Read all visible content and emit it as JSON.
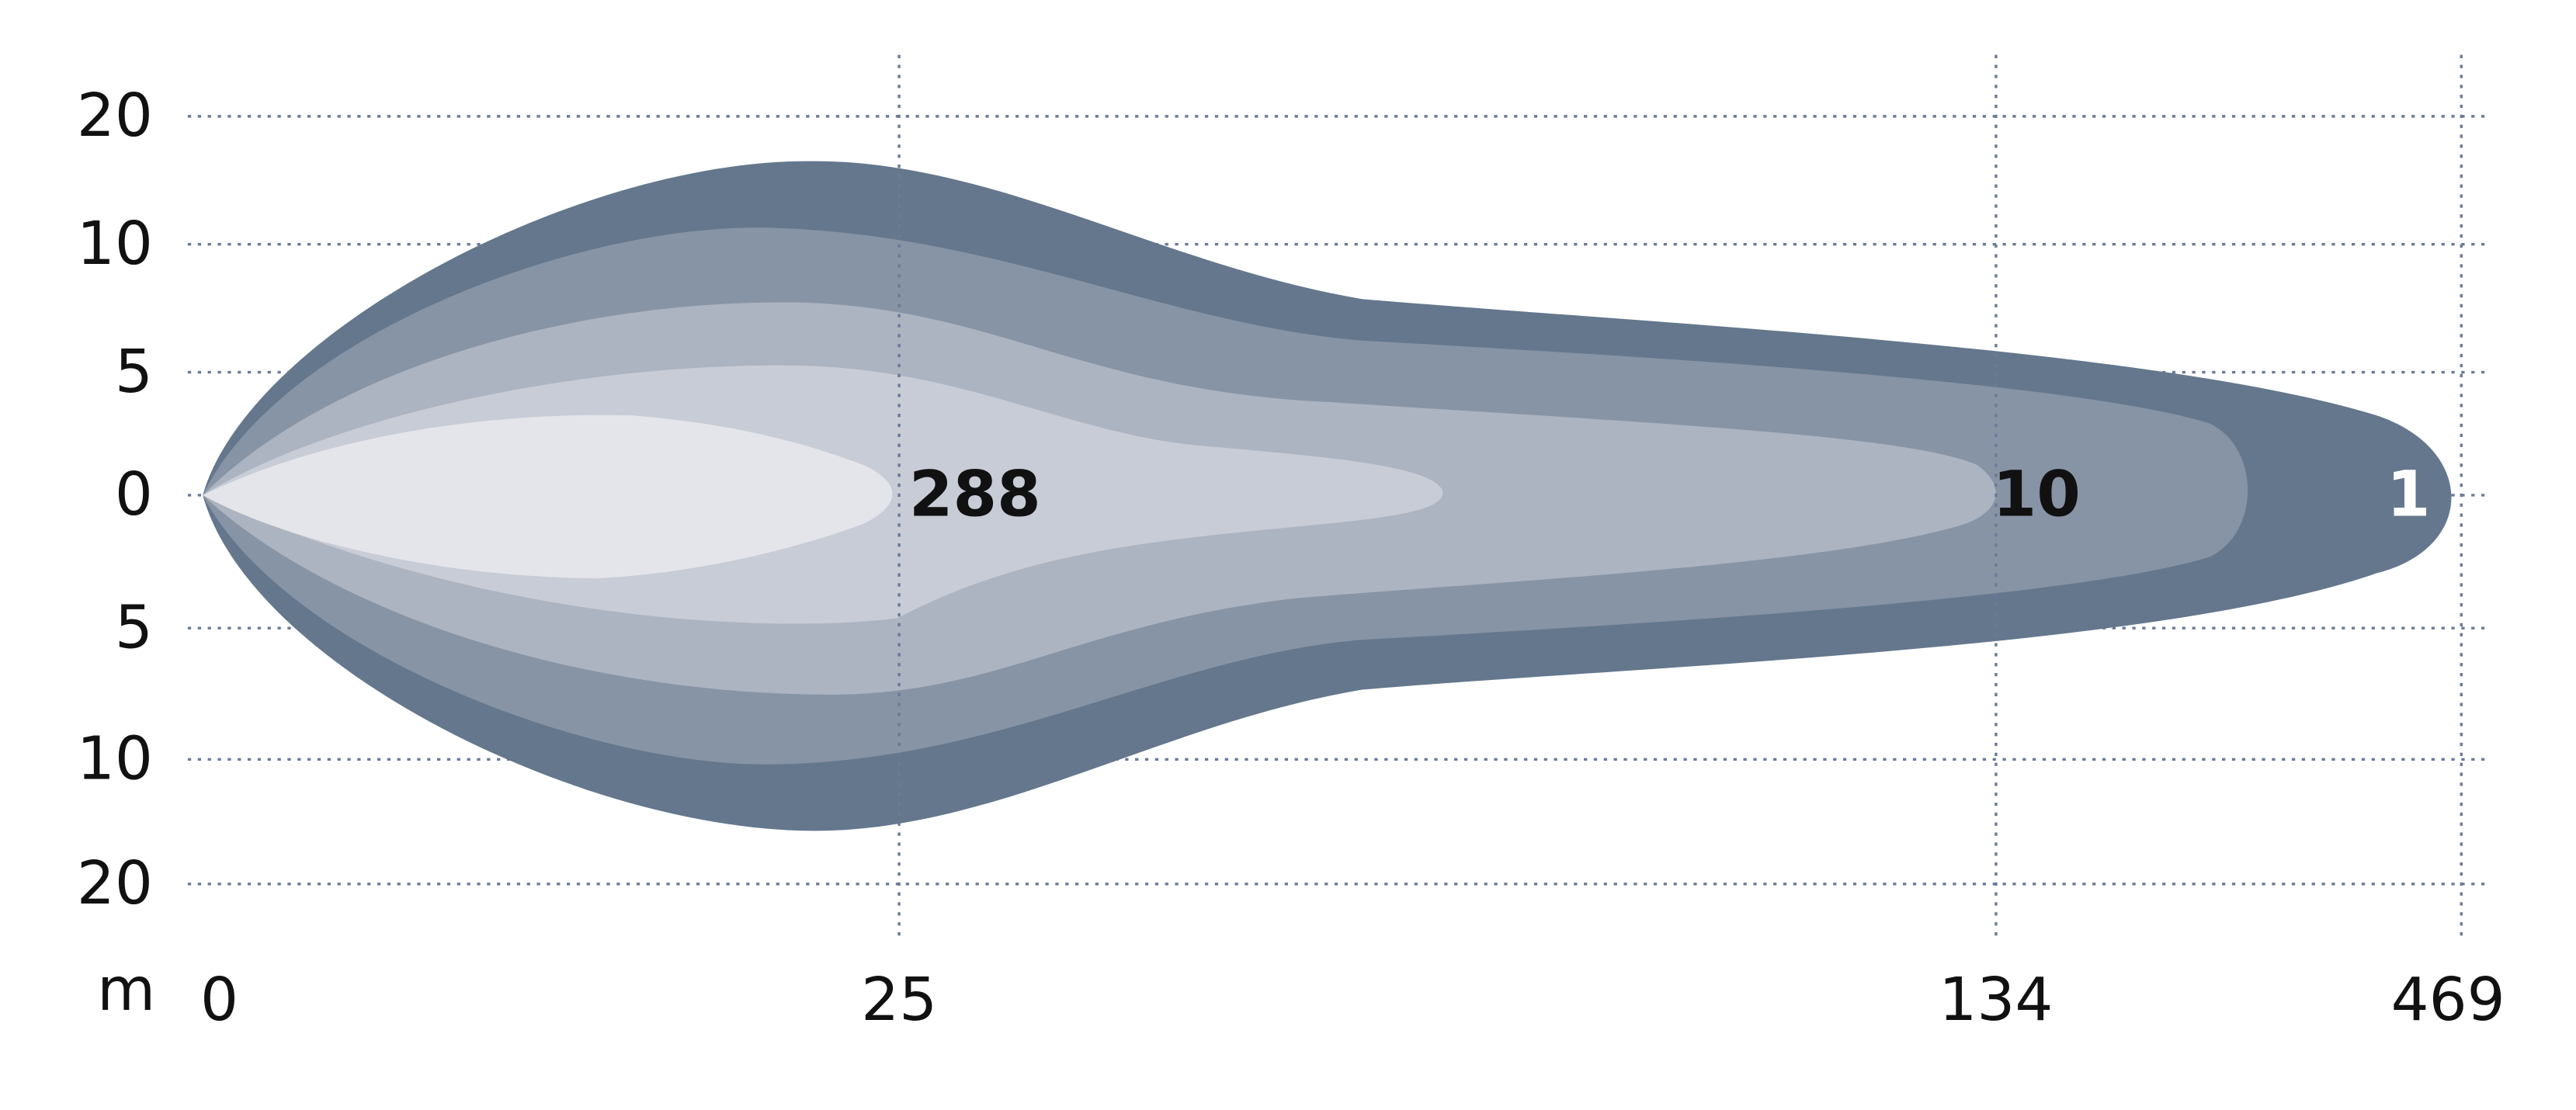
{
  "y_axis": {
    "labels": [
      "20",
      "10",
      "5",
      "0",
      "5",
      "10",
      "20"
    ]
  },
  "x_axis": {
    "unit": "m",
    "labels": [
      "0",
      "25",
      "134",
      "469"
    ]
  },
  "beam_labels": [
    "288",
    "10",
    "1"
  ]
}
